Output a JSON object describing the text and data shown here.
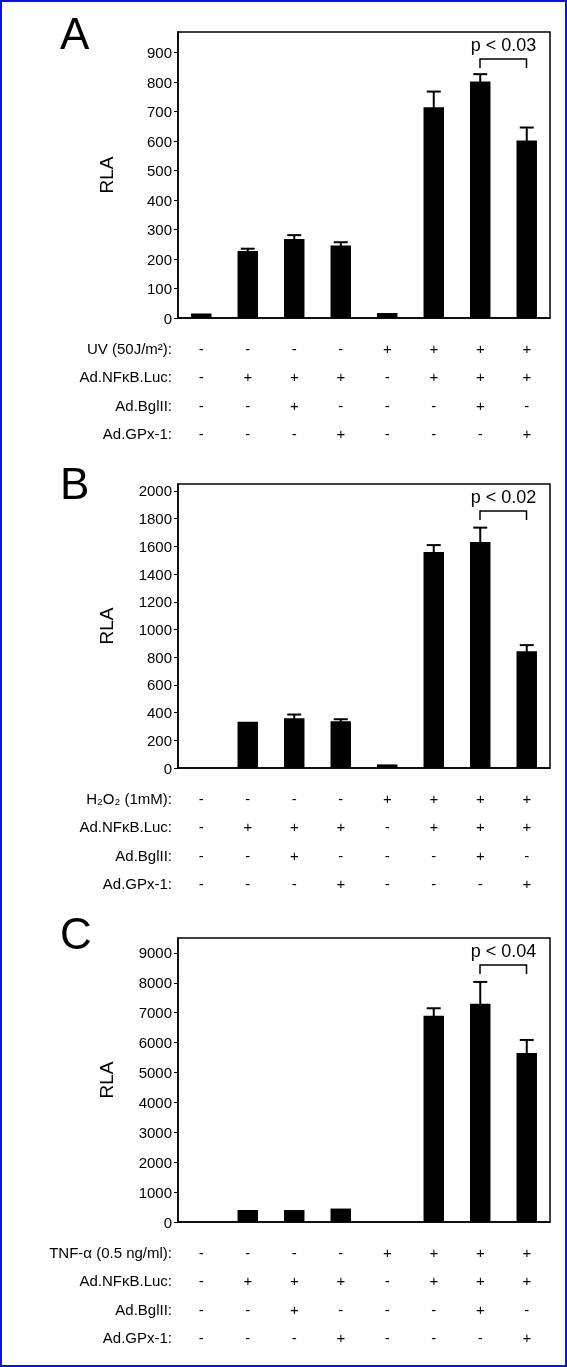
{
  "chart_data": [
    {
      "type": "bar",
      "title": "A",
      "ylabel": "RLA",
      "color": "#000000",
      "grid": false,
      "categories": [
        "-\n-\n-\n-",
        "-\n+\n-\n-",
        "-\n+\n+\n-",
        "-\n+\n-\n+",
        "+\n-\n-\n-",
        "+\n+\n-\n-",
        "+\n+\n+\n-",
        "+\n+\n-\n+"
      ],
      "values": [
        15,
        227,
        268,
        246,
        17,
        715,
        802,
        602
      ],
      "errors": [
        null,
        8,
        13,
        11,
        null,
        53,
        25,
        44
      ],
      "ylim": [
        0,
        970
      ],
      "yticks": [
        0,
        100,
        200,
        300,
        400,
        500,
        600,
        700,
        800,
        900
      ],
      "annotations": [
        "UV (50J/m²):",
        "Ad.NFκB.Luc:",
        "Ad.BglII:",
        "Ad.GPx-1:",
        "p < 0.03"
      ]
    },
    {
      "type": "bar",
      "title": "B",
      "ylabel": "RLA",
      "color": "#000000",
      "grid": false,
      "categories": [
        "-\n-\n-\n-",
        "-\n+\n-\n-",
        "-\n+\n+\n-",
        "-\n+\n-\n+",
        "+\n-\n-\n-",
        "+\n+\n-\n-",
        "+\n+\n+\n-",
        "+\n+\n-\n+"
      ],
      "values": [
        0,
        334,
        360,
        337,
        26,
        1560,
        1632,
        843
      ],
      "errors": [
        null,
        null,
        26,
        15,
        null,
        49,
        103,
        44
      ],
      "ylim": [
        0,
        2050
      ],
      "yticks": [
        0,
        200,
        400,
        600,
        800,
        1000,
        1200,
        1400,
        1600,
        1800,
        2000
      ],
      "annotations": [
        "H₂O₂ (1mM):",
        "Ad.NFκB.Luc:",
        "Ad.BglII:",
        "Ad.GPx-1:",
        "p < 0.02"
      ]
    },
    {
      "type": "bar",
      "title": "C",
      "ylabel": "RLA",
      "color": "#000000",
      "grid": false,
      "categories": [
        "-\n-\n-\n-",
        "-\n+\n-\n-",
        "-\n+\n+\n-",
        "-\n+\n-\n+",
        "+\n-\n-\n-",
        "+\n+\n-\n-",
        "+\n+\n+\n-",
        "+\n+\n-\n+"
      ],
      "values": [
        0,
        400,
        400,
        450,
        0,
        6900,
        7300,
        5650
      ],
      "errors": [
        null,
        null,
        null,
        null,
        null,
        250,
        730,
        440
      ],
      "ylim": [
        0,
        9500
      ],
      "yticks": [
        0,
        1000,
        2000,
        3000,
        4000,
        5000,
        6000,
        7000,
        8000,
        9000
      ],
      "annotations": [
        "TNF-α (0.5 ng/ml):",
        "Ad.NFκB.Luc:",
        "Ad.BglII:",
        "Ad.GPx-1:",
        "p < 0.04"
      ]
    }
  ]
}
